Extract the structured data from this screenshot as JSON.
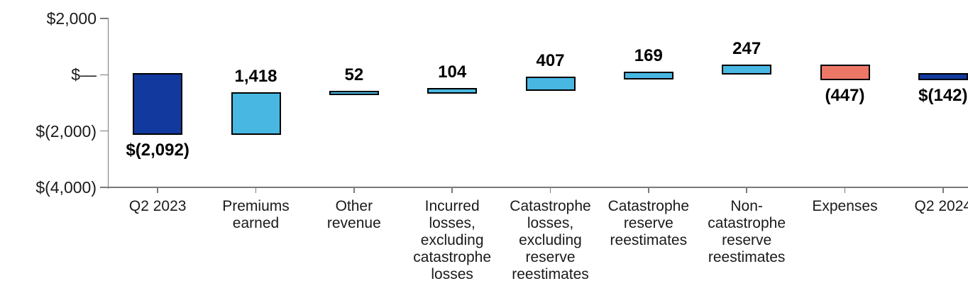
{
  "chart_data": {
    "type": "bar",
    "subtype": "waterfall",
    "title": "",
    "xlabel": "",
    "ylabel": "",
    "grid": false,
    "legend": false,
    "ylim": [
      -4000,
      2000
    ],
    "categories": [
      "Q2 2023",
      "Premiums earned",
      "Other revenue",
      "Incurred losses, excluding catastrophe losses",
      "Catastrophe losses, excluding reserve reestimates",
      "Catastrophe reserve reestimates",
      "Non-catastrophe reserve reestimates",
      "Expenses",
      "Q2 2024"
    ],
    "values": [
      -2092,
      1418,
      52,
      104,
      407,
      169,
      247,
      -447,
      -142
    ],
    "bar_starts": [
      0,
      -2092,
      -674,
      -622,
      -518,
      -111,
      58,
      305,
      0
    ],
    "bar_ends": [
      -2092,
      -674,
      -622,
      -518,
      -111,
      58,
      305,
      -142,
      -142
    ],
    "data_labels": [
      "$(2,092)",
      "1,418",
      "52",
      "104",
      "407",
      "169",
      "247",
      "(447)",
      "$(142)"
    ],
    "label_positions": [
      "below",
      "above",
      "above",
      "above",
      "above",
      "above",
      "above",
      "below",
      "below"
    ],
    "bar_colors": [
      "#123A9E",
      "#48B8E3",
      "#48B8E3",
      "#48B8E3",
      "#48B8E3",
      "#48B8E3",
      "#48B8E3",
      "#ED7767",
      "#123A9E"
    ],
    "y_ticks": [
      {
        "value": 2000,
        "label": "$2,000"
      },
      {
        "value": 0,
        "label": "$—"
      },
      {
        "value": -2000,
        "label": "$(2,000)"
      },
      {
        "value": -4000,
        "label": "$(4,000)"
      }
    ]
  },
  "colors": {
    "dark_blue": "#123A9E",
    "light_blue": "#48B8E3",
    "salmon": "#ED7767",
    "bar_border": "#000000",
    "axis": "#7B7B7B",
    "text": "#000000",
    "background": "#FFFFFF"
  }
}
